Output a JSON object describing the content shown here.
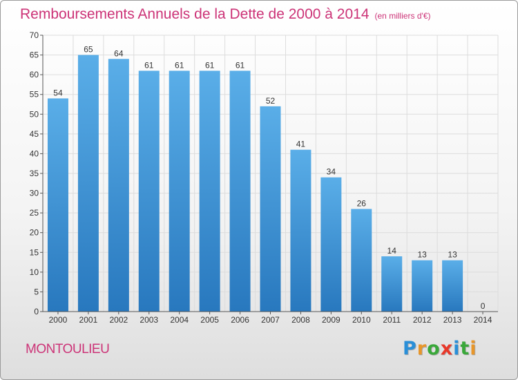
{
  "header": {
    "title": "Remboursements Annuels de la Dette de 2000 à 2014",
    "subtitle": "(en milliers d'€)"
  },
  "footer": {
    "commune": "MONTOULIEU",
    "logo": [
      "P",
      "r",
      "o",
      "x",
      "i",
      "t",
      "i"
    ],
    "logo_colors": [
      "#2a8fd8",
      "#e8962a",
      "#3aa83a",
      "#e8382a",
      "#2a8fd8",
      "#3aa83a",
      "#e8962a"
    ]
  },
  "colors": {
    "bar_top": "#5aaee8",
    "bar_bottom": "#2878be",
    "grid": "#dcdcdc",
    "axis": "#555555",
    "title": "#cc3377"
  },
  "chart_data": {
    "type": "bar",
    "categories": [
      "2000",
      "2001",
      "2002",
      "2003",
      "2004",
      "2005",
      "2006",
      "2007",
      "2008",
      "2009",
      "2010",
      "2011",
      "2012",
      "2013",
      "2014"
    ],
    "values": [
      54,
      65,
      64,
      61,
      61,
      61,
      61,
      52,
      41,
      34,
      26,
      14,
      13,
      13,
      0
    ],
    "ylim": [
      0,
      70
    ],
    "yticks": [
      0,
      5,
      10,
      15,
      20,
      25,
      30,
      35,
      40,
      45,
      50,
      55,
      60,
      65,
      70
    ],
    "grid": true,
    "legend": "none"
  }
}
